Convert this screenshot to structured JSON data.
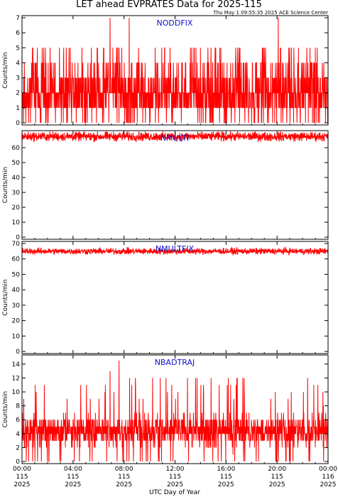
{
  "header": {
    "title": "LET ahead EVPRATES Data for 2025-115",
    "timestamp": "Thu May  1 09:55:35 2025 ACE Science Center"
  },
  "colors": {
    "series": "#ff0000",
    "panel_label": "#1010d0",
    "axes": "#000000"
  },
  "chart_data": [
    {
      "type": "line",
      "name": "NODDFIX",
      "ylabel": "Counts/min",
      "ylim": [
        0,
        7
      ],
      "yticks": [
        0,
        1,
        2,
        3,
        4,
        5,
        6,
        7
      ],
      "xlim_hours": [
        0,
        24
      ],
      "typical_range": [
        0,
        5
      ],
      "spikes": [
        {
          "hour": 6.9,
          "value": 7
        },
        {
          "hour": 8.4,
          "value": 7
        },
        {
          "hour": 20.1,
          "value": 7
        }
      ]
    },
    {
      "type": "line",
      "name": "NMULTI",
      "ylabel": "Counts/min",
      "ylim": [
        0,
        70
      ],
      "yticks": [
        0,
        10,
        20,
        30,
        40,
        50,
        60
      ],
      "xlim_hours": [
        0,
        24
      ],
      "typical_range": [
        63,
        72
      ]
    },
    {
      "type": "line",
      "name": "NMULTFIX",
      "ylabel": "Counts/min",
      "ylim": [
        0,
        70
      ],
      "yticks": [
        0,
        10,
        20,
        30,
        40,
        50,
        60,
        70
      ],
      "xlim_hours": [
        0,
        24
      ],
      "typical_range": [
        62,
        68
      ]
    },
    {
      "type": "line",
      "name": "NBADTRAJ",
      "ylabel": "Counts/min",
      "ylim": [
        0,
        15
      ],
      "yticks": [
        0,
        2,
        4,
        6,
        8,
        10,
        12,
        14
      ],
      "xlim_hours": [
        0,
        24
      ],
      "typical_range": [
        1,
        8
      ],
      "spikes": [
        {
          "hour": 7.6,
          "value": 14.5
        },
        {
          "hour": 6.9,
          "value": 13
        }
      ]
    }
  ],
  "x_axis": {
    "ticks": [
      {
        "hour": 0,
        "time": "00:00",
        "doy": "115",
        "year": "2025"
      },
      {
        "hour": 4,
        "time": "04:00",
        "doy": "115",
        "year": "2025"
      },
      {
        "hour": 8,
        "time": "08:00",
        "doy": "115",
        "year": "2025"
      },
      {
        "hour": 12,
        "time": "12:00",
        "doy": "115",
        "year": "2025"
      },
      {
        "hour": 16,
        "time": "16:00",
        "doy": "115",
        "year": "2025"
      },
      {
        "hour": 20,
        "time": "20:00",
        "doy": "115",
        "year": "2025"
      },
      {
        "hour": 24,
        "time": "00:00",
        "doy": "116",
        "year": "2025"
      }
    ],
    "label": "UTC Day of Year"
  }
}
